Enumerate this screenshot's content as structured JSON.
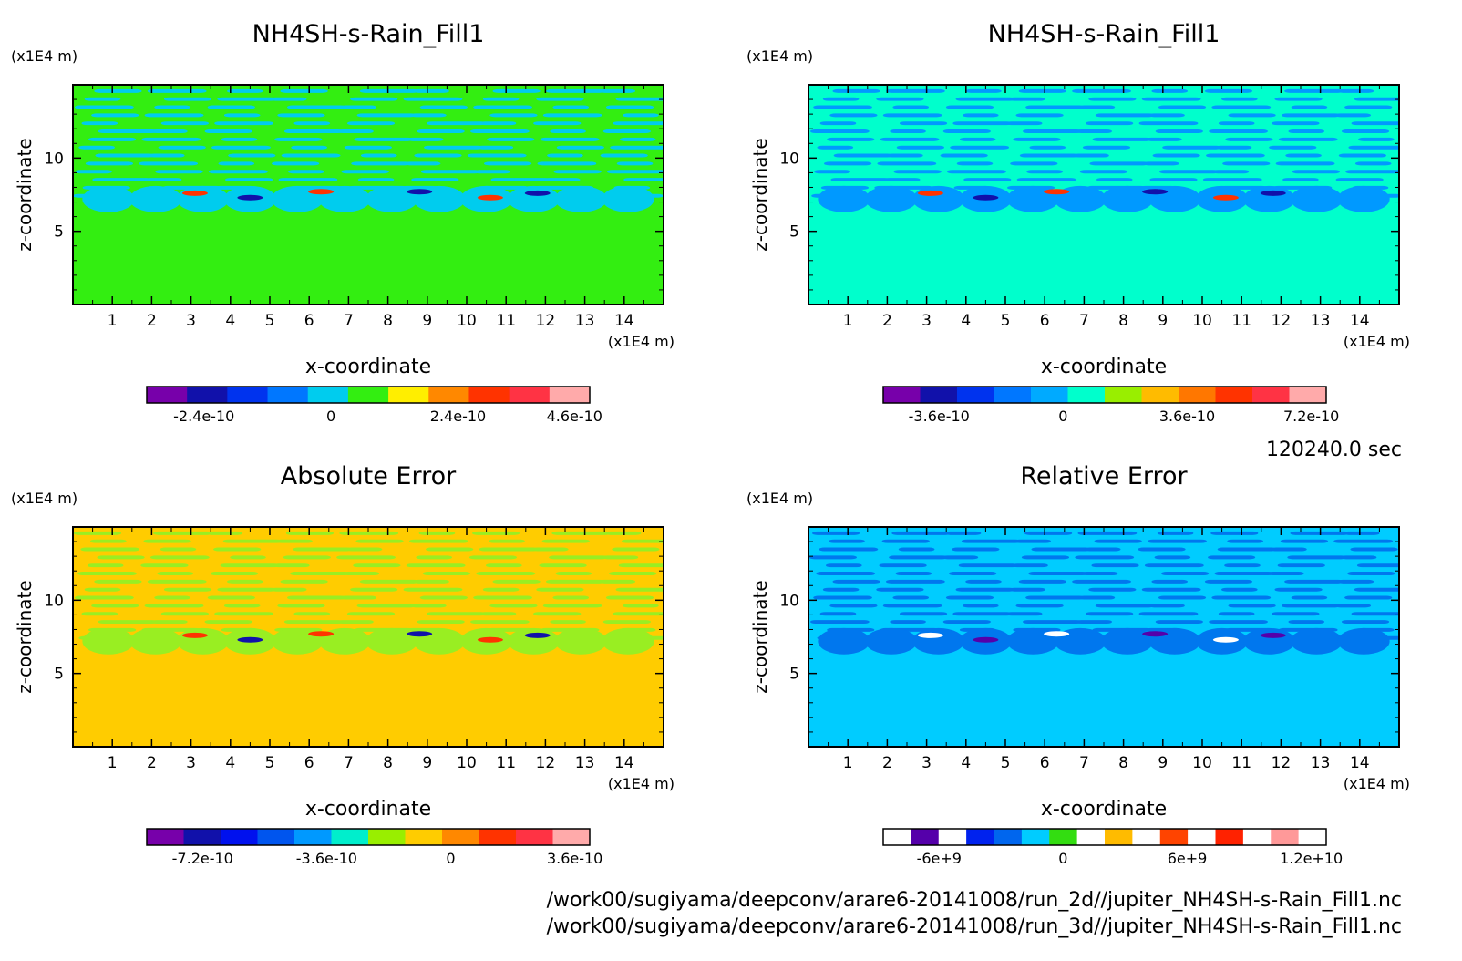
{
  "time_label": "120240.0 sec",
  "footer": {
    "line1": "/work00/sugiyama/deepconv/arare6-20141008/run_2d//jupiter_NH4SH-s-Rain_Fill1.nc",
    "line2": "/work00/sugiyama/deepconv/arare6-20141008/run_3d//jupiter_NH4SH-s-Rain_Fill1.nc"
  },
  "chart_data": [
    {
      "type": "heatmap",
      "title": "NH4SH-s-Rain_Fill1",
      "xlabel": "x-coordinate",
      "ylabel": "z-coordinate",
      "x_unit": "(x1E4 m)",
      "y_unit": "(x1E4 m)",
      "xlim": [
        0,
        15
      ],
      "ylim": [
        0,
        15
      ],
      "x_ticks": [
        "1",
        "2",
        "3",
        "4",
        "5",
        "6",
        "7",
        "8",
        "9",
        "10",
        "11",
        "12",
        "13",
        "14"
      ],
      "y_ticks": [
        "5",
        "10"
      ],
      "background_color": "#33ee11",
      "band_colors": [
        "#00ccee",
        "#33ee11"
      ],
      "colorbar": {
        "colors": [
          "#7700aa",
          "#1111aa",
          "#0033ee",
          "#0077ff",
          "#00ccee",
          "#33ee11",
          "#ffee00",
          "#ff8800",
          "#ff3300",
          "#ff3344",
          "#ffaaaa"
        ],
        "labels": [
          "-2.4e-10",
          "0",
          "2.4e-10",
          "4.6e-10"
        ],
        "label_positions_data": [
          -2.4e-10,
          0,
          2.4e-10,
          4.6e-10
        ]
      }
    },
    {
      "type": "heatmap",
      "title": "NH4SH-s-Rain_Fill1",
      "xlabel": "x-coordinate",
      "ylabel": "z-coordinate",
      "x_unit": "(x1E4 m)",
      "y_unit": "(x1E4 m)",
      "xlim": [
        0,
        15
      ],
      "ylim": [
        0,
        15
      ],
      "x_ticks": [
        "1",
        "2",
        "3",
        "4",
        "5",
        "6",
        "7",
        "8",
        "9",
        "10",
        "11",
        "12",
        "13",
        "14"
      ],
      "y_ticks": [
        "5",
        "10"
      ],
      "background_color": "#00ffcc",
      "band_colors": [
        "#0099ff",
        "#00ffcc"
      ],
      "colorbar": {
        "colors": [
          "#7700aa",
          "#1111aa",
          "#0033ee",
          "#0077ff",
          "#00aaff",
          "#00ffcc",
          "#99ee00",
          "#ffbb00",
          "#ff7700",
          "#ff3300",
          "#ff3344",
          "#ffaaaa"
        ],
        "labels": [
          "-3.6e-10",
          "0",
          "3.6e-10",
          "7.2e-10"
        ],
        "label_positions_data": [
          -3.6e-10,
          0,
          3.6e-10,
          7.2e-10
        ]
      }
    },
    {
      "type": "heatmap",
      "title": "Absolute Error",
      "xlabel": "x-coordinate",
      "ylabel": "z-coordinate",
      "x_unit": "(x1E4 m)",
      "y_unit": "(x1E4 m)",
      "xlim": [
        0,
        15
      ],
      "ylim": [
        0,
        15
      ],
      "x_ticks": [
        "1",
        "2",
        "3",
        "4",
        "5",
        "6",
        "7",
        "8",
        "9",
        "10",
        "11",
        "12",
        "13",
        "14"
      ],
      "y_ticks": [
        "5",
        "10"
      ],
      "background_color": "#ffcc00",
      "band_colors": [
        "#99ee22",
        "#ffcc00"
      ],
      "colorbar": {
        "colors": [
          "#7700aa",
          "#1111aa",
          "#0011ee",
          "#0055ee",
          "#0099ff",
          "#00eecc",
          "#99ee00",
          "#ffcc00",
          "#ff8800",
          "#ff3300",
          "#ff3344",
          "#ffaaaa"
        ],
        "labels": [
          "-7.2e-10",
          "-3.6e-10",
          "0",
          "3.6e-10"
        ],
        "label_positions_data": [
          -7.2e-10,
          -3.6e-10,
          0,
          3.6e-10
        ]
      }
    },
    {
      "type": "heatmap",
      "title": "Relative Error",
      "xlabel": "x-coordinate",
      "ylabel": "z-coordinate",
      "x_unit": "(x1E4 m)",
      "y_unit": "(x1E4 m)",
      "xlim": [
        0,
        15
      ],
      "ylim": [
        0,
        15
      ],
      "x_ticks": [
        "1",
        "2",
        "3",
        "4",
        "5",
        "6",
        "7",
        "8",
        "9",
        "10",
        "11",
        "12",
        "13",
        "14"
      ],
      "y_ticks": [
        "5",
        "10"
      ],
      "background_color": "#00ccff",
      "band_colors": [
        "#0077ee",
        "#00ccff"
      ],
      "colorbar": {
        "colors": [
          "#ffffff",
          "#5500aa",
          "#ffffff",
          "#0022ee",
          "#0066ee",
          "#00ccff",
          "#33dd11",
          "#ffffff",
          "#ffbb00",
          "#ffffff",
          "#ff4400",
          "#ffffff",
          "#ff2200",
          "#ffffff",
          "#ff9999",
          "#ffffff"
        ],
        "labels": [
          "-6e+9",
          "0",
          "6e+9",
          "1.2e+10"
        ],
        "label_positions_data": [
          -6000000000.0,
          0,
          6000000000.0,
          12000000000.0
        ]
      }
    }
  ]
}
